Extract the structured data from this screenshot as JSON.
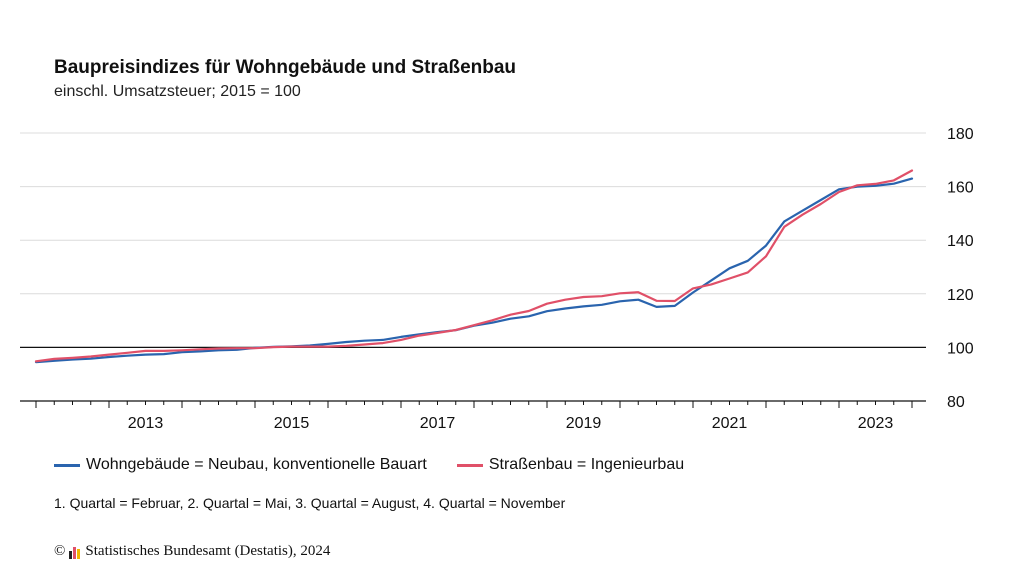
{
  "header": {
    "title": "Baupreisindizes für Wohngebäude und Straßenbau",
    "subtitle": "einschl. Umsatzsteuer; 2015 = 100"
  },
  "legend": {
    "items": [
      {
        "label": "Wohngebäude = Neubau, konventionelle Bauart",
        "color": "#2a64ae"
      },
      {
        "label": "Straßenbau = Ingenieurbau",
        "color": "#e05068"
      }
    ]
  },
  "footnote": "1. Quartal = Februar, 2. Quartal = Mai, 3. Quartal = August, 4. Quartal = November",
  "copyright": {
    "symbol": "©",
    "text": "Statistisches Bundesamt (Destatis), 2024",
    "logo_colors": [
      "#222222",
      "#e05068",
      "#f2b600"
    ]
  },
  "chart_data": {
    "type": "line",
    "title": "Baupreisindizes für Wohngebäude und Straßenbau",
    "subtitle": "einschl. Umsatzsteuer; 2015 = 100",
    "xlabel": "",
    "ylabel": "",
    "x_ticks": [
      "2013",
      "2015",
      "2017",
      "2019",
      "2021",
      "2023"
    ],
    "y_ticks": [
      80,
      100,
      120,
      140,
      160,
      180
    ],
    "ylim": [
      80,
      180
    ],
    "reference_line": 100,
    "grid": "horizontal",
    "y_axis_side": "right",
    "x": [
      "2012 Q1",
      "2012 Q2",
      "2012 Q3",
      "2012 Q4",
      "2013 Q1",
      "2013 Q2",
      "2013 Q3",
      "2013 Q4",
      "2014 Q1",
      "2014 Q2",
      "2014 Q3",
      "2014 Q4",
      "2015 Q1",
      "2015 Q2",
      "2015 Q3",
      "2015 Q4",
      "2016 Q1",
      "2016 Q2",
      "2016 Q3",
      "2016 Q4",
      "2017 Q1",
      "2017 Q2",
      "2017 Q3",
      "2017 Q4",
      "2018 Q1",
      "2018 Q2",
      "2018 Q3",
      "2018 Q4",
      "2019 Q1",
      "2019 Q2",
      "2019 Q3",
      "2019 Q4",
      "2020 Q1",
      "2020 Q2",
      "2020 Q3",
      "2020 Q4",
      "2021 Q1",
      "2021 Q2",
      "2021 Q3",
      "2021 Q4",
      "2022 Q1",
      "2022 Q2",
      "2022 Q3",
      "2022 Q4",
      "2023 Q1",
      "2023 Q2",
      "2023 Q3",
      "2023 Q4",
      "2024 Q1"
    ],
    "series": [
      {
        "name": "Wohngebäude = Neubau, konventionelle Bauart",
        "color": "#2a64ae",
        "values": [
          94.5,
          95.0,
          95.5,
          95.8,
          96.4,
          96.9,
          97.3,
          97.5,
          98.2,
          98.5,
          98.9,
          99.1,
          99.8,
          100.2,
          100.4,
          100.7,
          101.3,
          102.0,
          102.5,
          102.8,
          103.9,
          104.9,
          105.7,
          106.4,
          108.1,
          109.2,
          110.7,
          111.6,
          113.5,
          114.5,
          115.3,
          115.9,
          117.2,
          117.8,
          115.1,
          115.5,
          120.5,
          125.0,
          129.5,
          132.3,
          138.0,
          147.0,
          151.0,
          155.0,
          159.0,
          160.0,
          160.3,
          161.1,
          163.0
        ]
      },
      {
        "name": "Straßenbau = Ingenieurbau",
        "color": "#e05068",
        "values": [
          94.8,
          95.7,
          96.1,
          96.6,
          97.3,
          98.0,
          98.7,
          98.7,
          98.9,
          99.3,
          99.6,
          99.7,
          99.7,
          100.1,
          100.3,
          100.3,
          100.3,
          100.6,
          101.1,
          101.6,
          102.8,
          104.4,
          105.4,
          106.5,
          108.3,
          110.1,
          112.2,
          113.6,
          116.3,
          117.8,
          118.8,
          119.1,
          120.2,
          120.6,
          117.4,
          117.3,
          122.0,
          123.5,
          125.7,
          128.0,
          134.0,
          145.0,
          149.5,
          153.5,
          158.0,
          160.5,
          161.0,
          162.3,
          166.0
        ]
      }
    ]
  }
}
